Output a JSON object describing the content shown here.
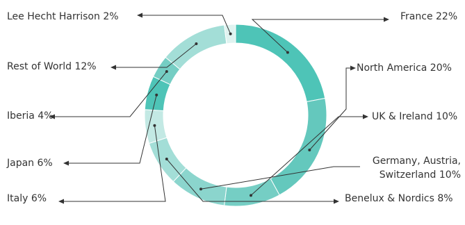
{
  "chart_data": {
    "type": "pie",
    "variant": "donut",
    "title": "",
    "categories": [
      "France",
      "North America",
      "UK & Ireland",
      "Germany, Austria, Switzerland",
      "Benelux & Nordics",
      "Italy",
      "Japan",
      "Iberia",
      "Rest of World",
      "Lee Hecht Harrison"
    ],
    "values": [
      22,
      20,
      10,
      10,
      8,
      6,
      6,
      4,
      12,
      2
    ],
    "labels": [
      "France 22%",
      "North America 20%",
      "UK & Ireland 10%",
      [
        "Germany, Austria,",
        "Switzerland 10%"
      ],
      "Benelux & Nordics 8%",
      "Italy 6%",
      "Japan 6%",
      "Iberia 4%",
      "Rest of World 12%",
      "Lee Hecht Harrison 2%"
    ],
    "colors": [
      "#4ec4b7",
      "#64c8bd",
      "#75cec4",
      "#8bd5cd",
      "#a3ded7",
      "#c3e9e4",
      "#4ec4b7",
      "#75cec4",
      "#a3ded7",
      "#dff3f0"
    ],
    "legend": "none",
    "start_angle": 0,
    "direction": "clockwise"
  }
}
